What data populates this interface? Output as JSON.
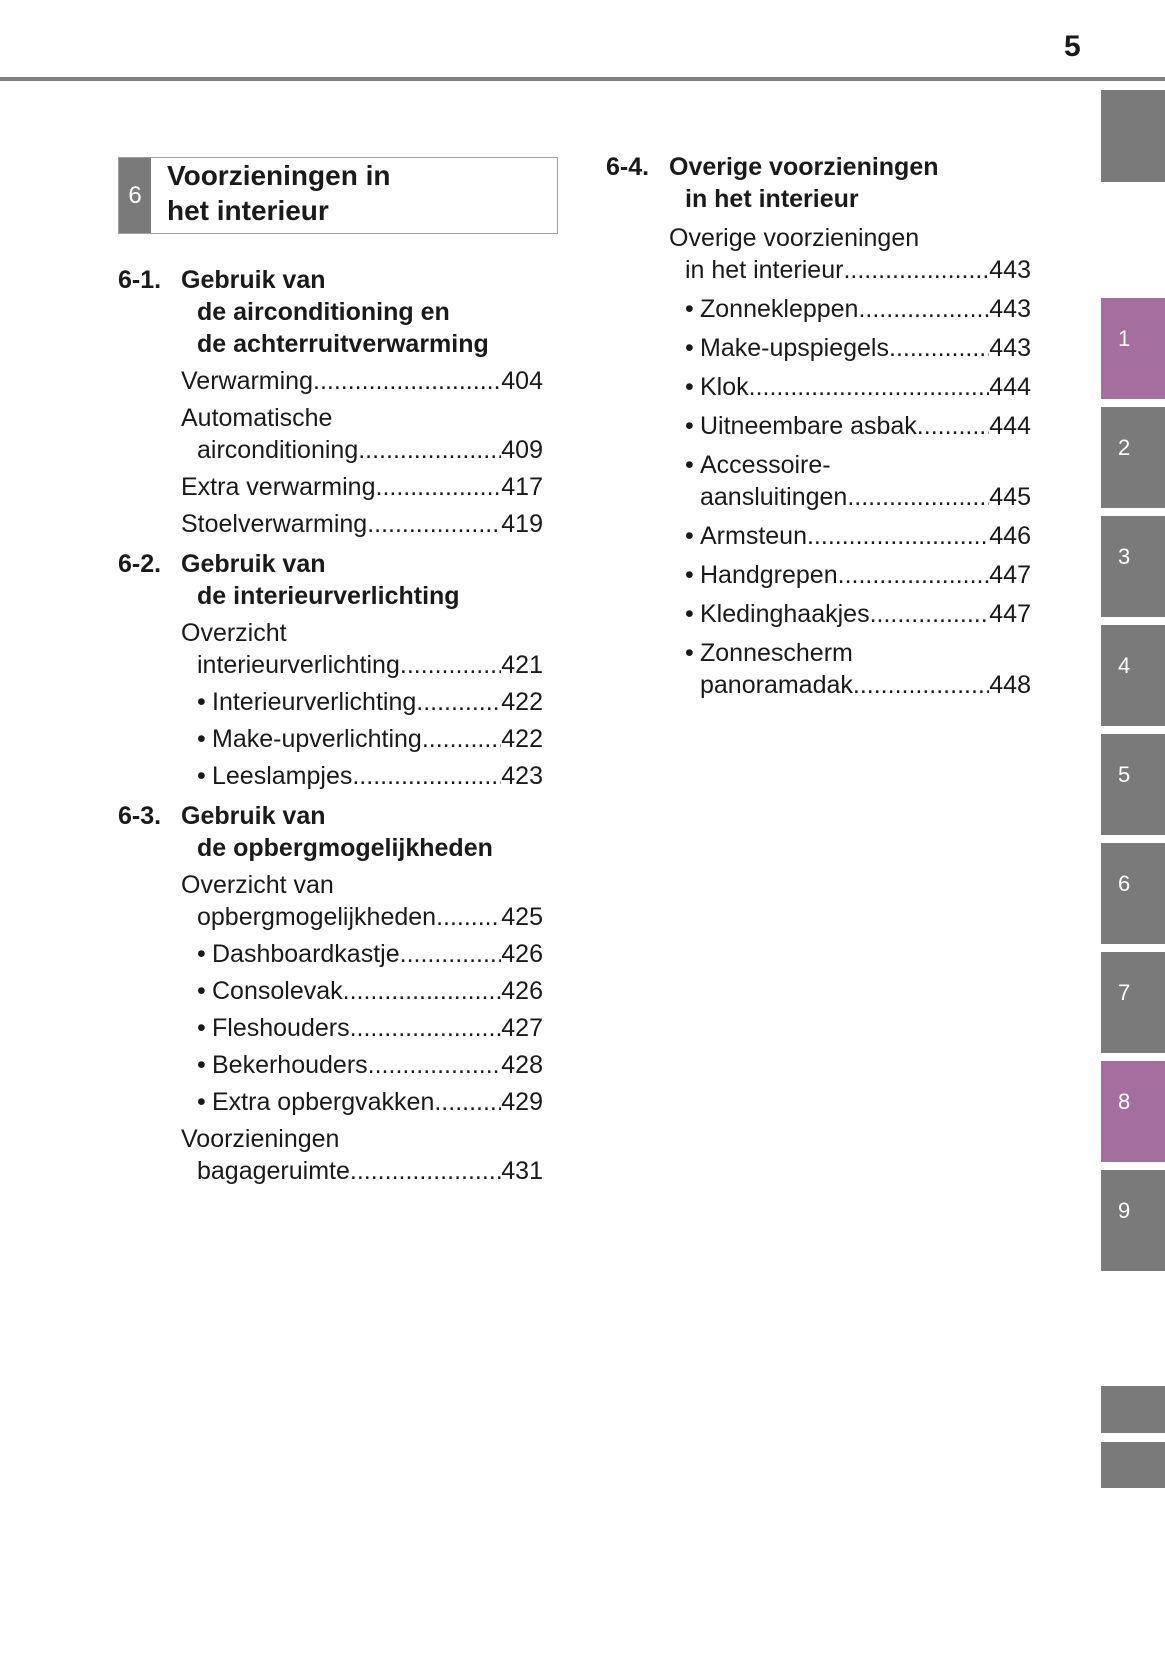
{
  "header": {
    "page_number": "5"
  },
  "colors": {
    "tab_gray": "#7a7a7a",
    "tab_active": "#a46e9e",
    "rule": "#808080"
  },
  "tabs": [
    {
      "label": ""
    },
    {
      "label": "1",
      "active": true
    },
    {
      "label": "2"
    },
    {
      "label": "3"
    },
    {
      "label": "4"
    },
    {
      "label": "5"
    },
    {
      "label": "6"
    },
    {
      "label": "7"
    },
    {
      "label": "8",
      "active": true
    },
    {
      "label": "9"
    },
    {
      "label": ""
    },
    {
      "label": ""
    }
  ],
  "chapter": {
    "number": "6",
    "title_lines": [
      "Voorzieningen in",
      "het interieur"
    ]
  },
  "columns": [
    {
      "sections": [
        {
          "number": "6-1.",
          "title_lines": [
            "Gebruik van",
            "de airconditioning en",
            "de achterruitverwarming"
          ],
          "entries": [
            {
              "lines": [
                "Verwarming"
              ],
              "page": "404"
            },
            {
              "lines": [
                "Automatische",
                "airconditioning "
              ],
              "page": "409"
            },
            {
              "lines": [
                "Extra verwarming"
              ],
              "page": "417"
            },
            {
              "lines": [
                "Stoelverwarming "
              ],
              "page": "419"
            }
          ]
        },
        {
          "number": "6-2.",
          "title_lines": [
            "Gebruik van",
            "de interieurverlichting"
          ],
          "entries": [
            {
              "lines": [
                "Overzicht",
                "interieurverlichting "
              ],
              "page": "421"
            },
            {
              "lines": [
                "Interieurverlichting "
              ],
              "page": "422",
              "bullet": true
            },
            {
              "lines": [
                "Make-upverlichting "
              ],
              "page": "422",
              "bullet": true
            },
            {
              "lines": [
                "Leeslampjes "
              ],
              "page": "423",
              "bullet": true
            }
          ]
        },
        {
          "number": "6-3.",
          "title_lines": [
            "Gebruik van",
            "de opbergmogelijkheden"
          ],
          "entries": [
            {
              "lines": [
                "Overzicht van",
                "opbergmogelijkheden "
              ],
              "page": "425"
            },
            {
              "lines": [
                "Dashboardkastje"
              ],
              "page": "426",
              "bullet": true
            },
            {
              "lines": [
                "Consolevak"
              ],
              "page": "426",
              "bullet": true
            },
            {
              "lines": [
                "Fleshouders"
              ],
              "page": "427",
              "bullet": true
            },
            {
              "lines": [
                "Bekerhouders "
              ],
              "page": "428",
              "bullet": true
            },
            {
              "lines": [
                "Extra opbergvakken"
              ],
              "page": "429",
              "bullet": true
            },
            {
              "lines": [
                "Voorzieningen",
                "bagageruimte"
              ],
              "page": "431"
            }
          ]
        }
      ]
    },
    {
      "sections": [
        {
          "number": "6-4.",
          "title_lines": [
            "Overige voorzieningen",
            "in het interieur"
          ],
          "entries": [
            {
              "lines": [
                "Overige voorzieningen",
                "in het interieur "
              ],
              "page": " 443"
            },
            {
              "lines": [
                "Zonnekleppen "
              ],
              "page": " 443",
              "bullet": true
            },
            {
              "lines": [
                "Make-upspiegels"
              ],
              "page": " 443",
              "bullet": true
            },
            {
              "lines": [
                "Klok"
              ],
              "page": " 444",
              "bullet": true
            },
            {
              "lines": [
                "Uitneembare asbak"
              ],
              "page": " 444",
              "bullet": true
            },
            {
              "lines": [
                "Accessoire-",
                "aansluitingen"
              ],
              "page": " 445",
              "bullet": true
            },
            {
              "lines": [
                "Armsteun "
              ],
              "page": " 446",
              "bullet": true
            },
            {
              "lines": [
                "Handgrepen "
              ],
              "page": " 447",
              "bullet": true
            },
            {
              "lines": [
                "Kledinghaakjes "
              ],
              "page": " 447",
              "bullet": true
            },
            {
              "lines": [
                "Zonnescherm",
                "panoramadak"
              ],
              "page": " 448",
              "bullet": true
            }
          ]
        }
      ]
    }
  ],
  "bullet_glyph": "•"
}
